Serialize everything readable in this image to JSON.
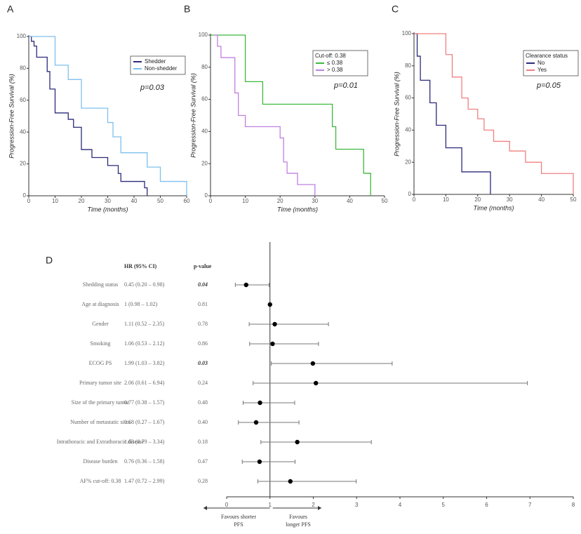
{
  "chart_data": [
    {
      "type": "step",
      "panel": "A",
      "xlabel": "Time (months)",
      "ylabel": "Progression-Free Survival (%)",
      "xlim": [
        0,
        60
      ],
      "xticks": [
        0,
        10,
        20,
        30,
        40,
        50,
        60
      ],
      "ylim": [
        0,
        100
      ],
      "yticks": [
        0,
        20,
        40,
        60,
        80,
        100
      ],
      "annotation": "p=0.03",
      "legend_loc": "upper right",
      "series": [
        {
          "name": "Shedder",
          "color": "#2b2a7a",
          "x": [
            0,
            1,
            2,
            3,
            7,
            8,
            10,
            15,
            17,
            20,
            24,
            30,
            34,
            35,
            44,
            45
          ],
          "values": [
            100,
            97,
            94,
            87,
            78,
            67,
            52,
            48,
            43,
            29,
            24,
            19,
            14,
            9,
            5,
            0
          ]
        },
        {
          "name": "Non-shedder",
          "color": "#7ec0ee",
          "x": [
            0,
            10,
            15,
            20,
            30,
            32,
            35,
            45,
            50,
            60
          ],
          "values": [
            100,
            82,
            73,
            55,
            46,
            37,
            27,
            18,
            9,
            0
          ]
        }
      ]
    },
    {
      "type": "step",
      "panel": "B",
      "xlabel": "Time (months)",
      "ylabel": "Progression-Free Survival (%)",
      "xlim": [
        0,
        50
      ],
      "xticks": [
        0,
        10,
        20,
        30,
        40,
        50
      ],
      "ylim": [
        0,
        100
      ],
      "yticks": [
        0,
        20,
        40,
        60,
        80,
        100
      ],
      "annotation": "p=0.01",
      "legend_loc": "upper right",
      "legend_title": "Cut-off: 0.38",
      "series": [
        {
          "name": "≤ 0.38",
          "color": "#3cb83c",
          "x": [
            0,
            10,
            15,
            35,
            36,
            44,
            46
          ],
          "values": [
            100,
            71,
            57,
            43,
            29,
            14,
            0
          ]
        },
        {
          "name": "> 0.38",
          "color": "#c080e0",
          "x": [
            1,
            2,
            3,
            7,
            8,
            10,
            20,
            21,
            22,
            25,
            30
          ],
          "values": [
            100,
            93,
            86,
            64,
            50,
            43,
            36,
            21,
            14,
            7,
            0
          ]
        }
      ]
    },
    {
      "type": "step",
      "panel": "C",
      "xlabel": "Time (months)",
      "ylabel": "Progression-Free Survival (%)",
      "xlim": [
        0,
        50
      ],
      "xticks": [
        0,
        10,
        20,
        30,
        40,
        50
      ],
      "ylim": [
        0,
        100
      ],
      "yticks": [
        0,
        20,
        40,
        60,
        80,
        100
      ],
      "annotation": "p=0.05",
      "legend_loc": "upper right",
      "legend_title": "Clearance status",
      "series": [
        {
          "name": "No",
          "color": "#2b2a7a",
          "x": [
            0,
            1,
            2,
            5,
            7,
            10,
            15,
            24
          ],
          "values": [
            100,
            86,
            71,
            57,
            43,
            29,
            14,
            0
          ]
        },
        {
          "name": "Yes",
          "color": "#f08080",
          "x": [
            0,
            10,
            12,
            15,
            17,
            20,
            22,
            25,
            30,
            35,
            40,
            50
          ],
          "values": [
            100,
            87,
            73,
            60,
            53,
            47,
            40,
            33,
            27,
            20,
            13,
            0
          ]
        }
      ]
    },
    {
      "type": "forest",
      "panel": "D",
      "hr_header": "HR (95% CI)",
      "p_header": "p-value",
      "xlim": [
        0,
        8
      ],
      "xticks": [
        0,
        1,
        2,
        3,
        4,
        5,
        6,
        7,
        8
      ],
      "reference": 1,
      "favours_left": [
        "Favours shorter",
        "PFS"
      ],
      "favours_right": [
        "Favours",
        "longer PFS"
      ],
      "categories": [
        "Shedding status",
        "Age at diagnosis",
        "Gender",
        "Smoking",
        "ECOG PS",
        "Primary tumor site",
        "Size of the primary tumor",
        "Number of metastatic sites",
        "Intrathoracic and Extrathoracic disease",
        "Disease burden",
        "AF% cut-off: 0.38"
      ],
      "values": [
        0.45,
        1,
        1.11,
        1.06,
        1.99,
        2.06,
        0.77,
        0.68,
        1.63,
        0.76,
        1.47
      ],
      "lower": [
        0.2,
        0.98,
        0.52,
        0.53,
        1.03,
        0.61,
        0.38,
        0.27,
        0.79,
        0.36,
        0.72
      ],
      "upper": [
        0.98,
        1.02,
        2.35,
        2.12,
        3.82,
        6.94,
        1.57,
        1.67,
        3.34,
        1.58,
        2.99
      ],
      "value_labels": [
        "0.45 (0.20 – 0.98)",
        "1 (0.98 – 1.02)",
        "1.11 (0.52 – 2.35)",
        "1.06 (0.53 – 2.12)",
        "1.99 (1.03 – 3.82)",
        "2.06 (0.61 – 6.94)",
        "0.77 (0.38 – 1.57)",
        "0.68 (0.27 – 1.67)",
        "1.63 (0.79 – 3.34)",
        "0.76 (0.36 – 1.58)",
        "1.47 (0.72 – 2.99)"
      ],
      "pvalues": [
        "0.04",
        "0.81",
        "0.78",
        "0.86",
        "0.03",
        "0.24",
        "0.48",
        "0.40",
        "0.18",
        "0.47",
        "0.28"
      ],
      "bold_rows": [
        0,
        4
      ]
    }
  ]
}
